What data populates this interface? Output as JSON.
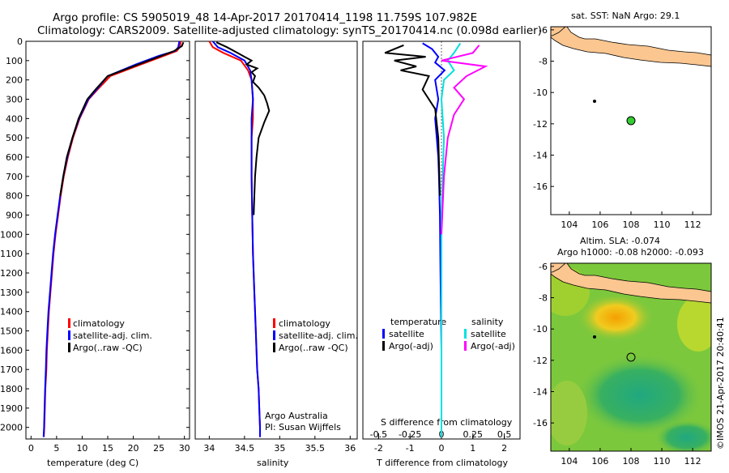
{
  "header": {
    "line1": "Argo profile: CS 5905019_48 14-Apr-2017 20170414_1198 11.759S 107.982E",
    "line2": "Climatology: CARS2009. Satellite-adjusted climatology: synTS_20170414.nc (0.098d earlier)"
  },
  "colors": {
    "climatology": "#ff0000",
    "satellite": "#0000ff",
    "argo": "#000000",
    "sat_salinity": "#00e0e0",
    "argo_salinity": "#ff00ff",
    "land": "#fbc690",
    "marker": "#33cc33"
  },
  "chart_data": [
    {
      "type": "line",
      "panel": "temperature",
      "xlabel": "temperature (deg C)",
      "ylabel": "",
      "xlim": [
        -1,
        31
      ],
      "ylim": [
        2060,
        0
      ],
      "xticks": [
        0,
        5,
        10,
        15,
        20,
        25,
        30
      ],
      "yticks": [
        0,
        100,
        200,
        300,
        400,
        500,
        600,
        700,
        800,
        900,
        1000,
        1100,
        1200,
        1300,
        1400,
        1500,
        1600,
        1700,
        1800,
        1900,
        2000
      ],
      "legend": [
        "climatology",
        "satellite-adj. clim.",
        "Argo(..raw -QC)"
      ],
      "series": [
        {
          "name": "climatology",
          "x": [
            29.3,
            29.1,
            28.5,
            26,
            21.5,
            15.5,
            13,
            11.3,
            9.5,
            8.2,
            7.2,
            6.4,
            5.8,
            5.3,
            4.8,
            4.4,
            4.1,
            3.8,
            3.5,
            3.3,
            3.1,
            3.0,
            2.8,
            2.7,
            2.6,
            2.5
          ],
          "y": [
            0,
            30,
            50,
            75,
            120,
            180,
            250,
            300,
            400,
            500,
            600,
            700,
            800,
            900,
            1000,
            1100,
            1200,
            1300,
            1400,
            1500,
            1600,
            1700,
            1800,
            1900,
            2000,
            2050
          ]
        },
        {
          "name": "satellite-adj. clim.",
          "x": [
            29.0,
            28.8,
            28.2,
            25,
            20.5,
            15,
            12.8,
            11.2,
            9.4,
            8.1,
            7.1,
            6.3,
            5.7,
            5.2,
            4.7,
            4.3,
            4.0,
            3.7,
            3.4,
            3.2,
            3.0,
            2.9,
            2.75,
            2.65,
            2.55,
            2.45
          ],
          "y": [
            0,
            30,
            50,
            75,
            120,
            180,
            250,
            300,
            400,
            500,
            600,
            700,
            800,
            900,
            1000,
            1100,
            1200,
            1300,
            1400,
            1500,
            1600,
            1700,
            1800,
            1900,
            2000,
            2050
          ]
        },
        {
          "name": "Argo(..raw -QC)",
          "x": [
            29.8,
            29.5,
            28,
            25.5,
            21,
            15,
            12.6,
            11,
            9.3,
            8.1,
            7.0,
            6.3,
            5.7
          ],
          "y": [
            5,
            25,
            50,
            75,
            120,
            180,
            250,
            300,
            400,
            500,
            600,
            700,
            800
          ]
        }
      ]
    },
    {
      "type": "line",
      "panel": "salinity",
      "xlabel": "salinity",
      "xlim": [
        33.8,
        36.1
      ],
      "ylim": [
        2060,
        0
      ],
      "xticks": [
        34,
        34.5,
        35,
        35.5,
        36
      ],
      "xticklabels": [
        "34",
        "34.5",
        "35",
        "35.5",
        "36"
      ],
      "legend": [
        "climatology",
        "satellite-adj. clim.",
        "Argo(..raw -QC)"
      ],
      "annotation": [
        "Argo Australia",
        "PI: Susan Wijffels"
      ],
      "series": [
        {
          "name": "climatology",
          "x": [
            34.0,
            34.05,
            34.2,
            34.45,
            34.55,
            34.6,
            34.62,
            34.62,
            34.6,
            34.6,
            34.6,
            34.61,
            34.62,
            34.64,
            34.66,
            34.68,
            34.7,
            34.71,
            34.72,
            34.72
          ],
          "y": [
            0,
            30,
            60,
            100,
            150,
            200,
            300,
            400,
            500,
            600,
            700,
            900,
            1100,
            1300,
            1500,
            1700,
            1800,
            1900,
            2000,
            2050
          ]
        },
        {
          "name": "satellite-adj. clim.",
          "x": [
            34.05,
            34.12,
            34.3,
            34.5,
            34.58,
            34.6,
            34.62,
            34.6,
            34.6,
            34.6,
            34.6,
            34.61,
            34.62,
            34.64,
            34.66,
            34.68,
            34.7,
            34.71,
            34.72,
            34.72
          ],
          "y": [
            0,
            30,
            60,
            100,
            150,
            200,
            300,
            400,
            500,
            600,
            700,
            900,
            1100,
            1300,
            1500,
            1700,
            1800,
            1900,
            2000,
            2050
          ]
        },
        {
          "name": "Argo(..raw -QC)",
          "x": [
            34.1,
            34.25,
            34.4,
            34.5,
            34.6,
            34.53,
            34.68,
            34.6,
            34.65,
            34.62,
            34.7,
            34.78,
            34.82,
            34.85,
            34.78,
            34.7,
            34.67,
            34.65,
            34.64,
            34.63
          ],
          "y": [
            5,
            30,
            60,
            80,
            100,
            120,
            140,
            160,
            180,
            210,
            240,
            280,
            320,
            360,
            420,
            500,
            600,
            700,
            800,
            900
          ]
        }
      ]
    },
    {
      "type": "line",
      "panel": "differences",
      "xlabel": "T difference from climatology",
      "xlabel_top": "S difference from climatology",
      "xlim": [
        -2.5,
        2.5
      ],
      "ylim": [
        2060,
        0
      ],
      "xticks": [
        -2,
        -1,
        0,
        1,
        2
      ],
      "xticks_top": [
        -0.5,
        -0.25,
        0,
        0.25,
        0.5
      ],
      "xticklabels_top": [
        "-0.5",
        "-0.25",
        "0",
        "0.25",
        "0.5"
      ],
      "legend_temperature": [
        "temperature",
        "satellite",
        "Argo(-adj)"
      ],
      "legend_salinity": [
        "salinity",
        "satellite",
        "Argo(-adj)"
      ],
      "series": [
        {
          "name": "T satellite",
          "x": [
            -0.6,
            -0.3,
            -0.1,
            -0.2,
            0.1,
            -0.2,
            -0.1,
            -0.2,
            -0.15,
            -0.1,
            -0.08,
            -0.05,
            -0.03,
            0,
            0
          ],
          "y": [
            10,
            40,
            80,
            110,
            150,
            200,
            300,
            400,
            500,
            600,
            700,
            900,
            1200,
            1600,
            2050
          ]
        },
        {
          "name": "T Argo(-adj)",
          "x": [
            -1.2,
            -1.8,
            -0.5,
            -1.5,
            -0.8,
            -1.3,
            -0.4,
            -0.6,
            -0.2,
            -0.1,
            -0.05
          ],
          "y": [
            20,
            60,
            80,
            100,
            130,
            150,
            180,
            250,
            350,
            500,
            800
          ]
        },
        {
          "name": "S satellite",
          "x": [
            0.15,
            0.1,
            0.05,
            0.1,
            0.02,
            0.0,
            0.02,
            0,
            0,
            0
          ],
          "y": [
            10,
            60,
            100,
            150,
            200,
            300,
            500,
            900,
            1500,
            2050
          ]
        },
        {
          "name": "S Argo(-adj)",
          "x": [
            0.3,
            0.25,
            0.0,
            0.35,
            0.2,
            0.1,
            0.18,
            0.1,
            0.05,
            0.02,
            0.0
          ],
          "y": [
            20,
            60,
            100,
            130,
            180,
            240,
            300,
            380,
            500,
            700,
            1000
          ]
        }
      ]
    }
  ],
  "map_top": {
    "title": "sat. SST: NaN Argo: 29.1",
    "xticks": [
      "104",
      "106",
      "108",
      "110",
      "112"
    ],
    "yticks": [
      "-6",
      "-8",
      "-10",
      "-12",
      "-14",
      "-16"
    ],
    "xlim": [
      102.8,
      113.2
    ],
    "ylim": [
      -17.8,
      -5.8
    ],
    "marker": {
      "lon": 108.0,
      "lat": -11.8
    }
  },
  "map_bottom": {
    "title1": "Altim. SLA: -0.074",
    "title2": "Argo h1000: -0.08 h2000: -0.093",
    "xticks": [
      "104",
      "106",
      "108",
      "110",
      "112"
    ],
    "yticks": [
      "-6",
      "-8",
      "-10",
      "-12",
      "-14",
      "-16"
    ],
    "xlim": [
      102.8,
      113.2
    ],
    "ylim": [
      -17.8,
      -5.8
    ],
    "marker": {
      "lon": 108.0,
      "lat": -11.8
    }
  },
  "side_label": "©IMOS 21-Apr-2017 20:40:41"
}
